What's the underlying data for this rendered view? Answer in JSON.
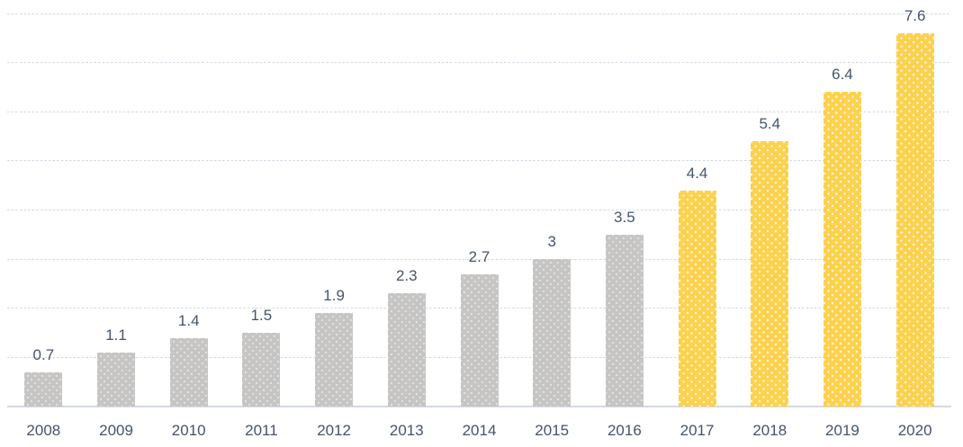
{
  "chart_data": {
    "type": "bar",
    "title": "",
    "xlabel": "",
    "ylabel": "",
    "categories": [
      "2008",
      "2009",
      "2010",
      "2011",
      "2012",
      "2013",
      "2014",
      "2015",
      "2016",
      "2017",
      "2018",
      "2019",
      "2020"
    ],
    "values": [
      0.7,
      1.1,
      1.4,
      1.5,
      1.9,
      2.3,
      2.7,
      3,
      3.5,
      4.4,
      5.4,
      6.4,
      7.6
    ],
    "data_labels": [
      "0.7",
      "1.1",
      "1.4",
      "1.5",
      "1.9",
      "2.3",
      "2.7",
      "3",
      "3.5",
      "4.4",
      "5.4",
      "6.4",
      "7.6"
    ],
    "highlighted_categories": [
      "2017",
      "2018",
      "2019",
      "2020"
    ],
    "ylim": [
      0,
      8
    ],
    "gridline_interval": 1,
    "grid": true,
    "legend": "none",
    "colors": {
      "bar_default": "#c6c5c3",
      "bar_highlight": "#fbd14e",
      "label_text": "#44546a",
      "gridline": "#cdd5df",
      "axis_line": "#d3d9e2",
      "background": "#ffffff"
    }
  }
}
